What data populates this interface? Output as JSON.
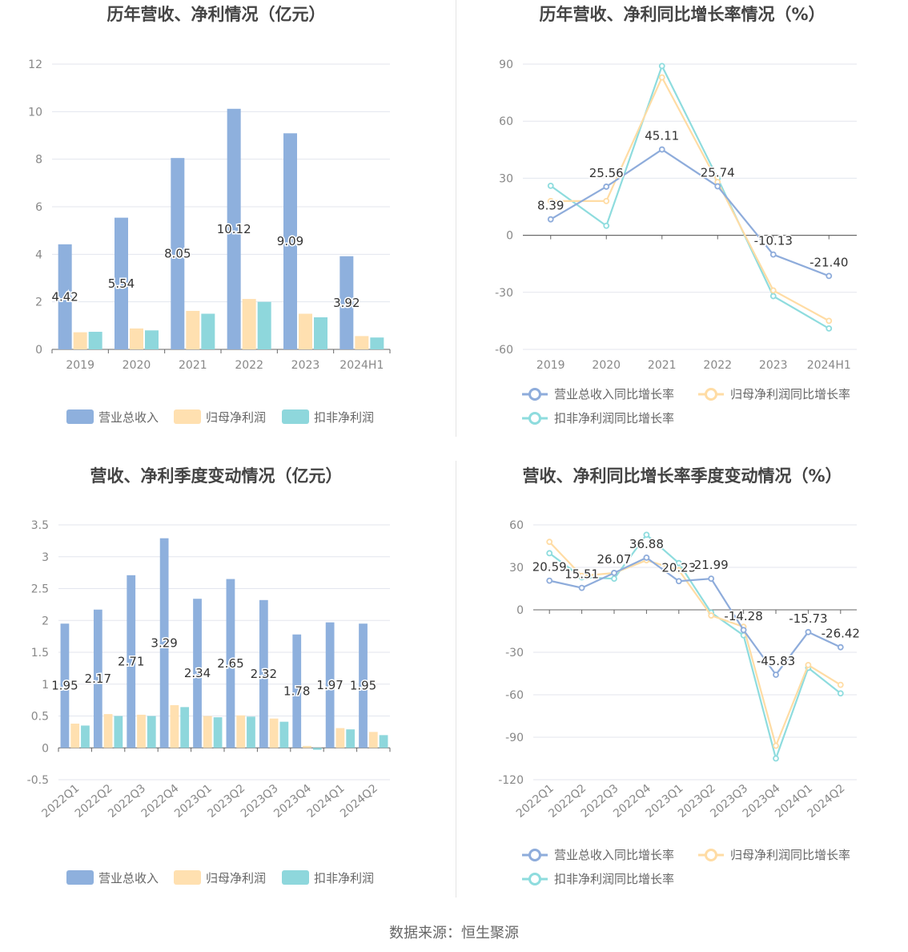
{
  "colors": {
    "revenue": "#8eb0dd",
    "parent_profit": "#ffe0b0",
    "deducted_profit": "#8ed7dc",
    "line_revenue": "#8eacdb",
    "line_parent": "#ffdca4",
    "line_deducted": "#8edcde"
  },
  "source": "数据来源：恒生聚源",
  "chart_data": [
    {
      "id": "annual_bar",
      "type": "bar",
      "title": "历年营收、净利情况（亿元）",
      "categories": [
        "2019",
        "2020",
        "2021",
        "2022",
        "2023",
        "2024H1"
      ],
      "ylim": [
        0,
        12
      ],
      "yticks": [
        "0",
        "2",
        "4",
        "6",
        "8",
        "10",
        "12"
      ],
      "ytick_values": [
        0,
        2,
        4,
        6,
        8,
        10,
        12
      ],
      "series": [
        {
          "name": "营业总收入",
          "values": [
            4.42,
            5.54,
            8.05,
            10.12,
            9.09,
            3.92
          ],
          "labels": [
            "4.42",
            "5.54",
            "8.05",
            "10.12",
            "9.09",
            "3.92"
          ]
        },
        {
          "name": "归母净利润",
          "values": [
            0.72,
            0.88,
            1.62,
            2.12,
            1.5,
            0.56
          ]
        },
        {
          "name": "扣非净利润",
          "values": [
            0.74,
            0.8,
            1.5,
            2.0,
            1.35,
            0.5
          ]
        }
      ],
      "legend": [
        "营业总收入",
        "归母净利润",
        "扣非净利润"
      ],
      "legend_position": "bottom"
    },
    {
      "id": "annual_line",
      "type": "line",
      "title": "历年营收、净利同比增长率情况（%）",
      "categories": [
        "2019",
        "2020",
        "2021",
        "2022",
        "2023",
        "2024H1"
      ],
      "ylim": [
        -60,
        90
      ],
      "yticks": [
        "-60",
        "-30",
        "0",
        "30",
        "60",
        "90"
      ],
      "ytick_values": [
        -60,
        -30,
        0,
        30,
        60,
        90
      ],
      "series": [
        {
          "name": "营业总收入同比增长率",
          "values": [
            8.39,
            25.56,
            45.11,
            25.74,
            -10.13,
            -21.4
          ],
          "labels": [
            "8.39",
            "25.56",
            "45.11",
            "25.74",
            "-10.13",
            "-21.40"
          ]
        },
        {
          "name": "归母净利润同比增长率",
          "values": [
            18,
            18,
            83,
            28,
            -29,
            -45
          ]
        },
        {
          "name": "扣非净利润同比增长率",
          "values": [
            26,
            5,
            89,
            30,
            -32,
            -49
          ]
        }
      ],
      "legend": [
        "营业总收入同比增长率",
        "归母净利润同比增长率",
        "扣非净利润同比增长率"
      ],
      "legend_position": "bottom"
    },
    {
      "id": "quarter_bar",
      "type": "bar",
      "title": "营收、净利季度变动情况（亿元）",
      "categories": [
        "2022Q1",
        "2022Q2",
        "2022Q3",
        "2022Q4",
        "2023Q1",
        "2023Q2",
        "2023Q3",
        "2023Q4",
        "2024Q1",
        "2024Q2"
      ],
      "ylim": [
        -0.5,
        3.5
      ],
      "yticks": [
        "-0.5",
        "0",
        "0.5",
        "1",
        "1.5",
        "2",
        "2.5",
        "3",
        "3.5"
      ],
      "ytick_values": [
        -0.5,
        0,
        0.5,
        1,
        1.5,
        2,
        2.5,
        3,
        3.5
      ],
      "series": [
        {
          "name": "营业总收入",
          "values": [
            1.95,
            2.17,
            2.71,
            3.29,
            2.34,
            2.65,
            2.32,
            1.78,
            1.97,
            1.95
          ],
          "labels": [
            "1.95",
            "2.17",
            "2.71",
            "3.29",
            "2.34",
            "2.65",
            "2.32",
            "1.78",
            "1.97",
            "1.95"
          ]
        },
        {
          "name": "归母净利润",
          "values": [
            0.38,
            0.53,
            0.52,
            0.67,
            0.5,
            0.51,
            0.46,
            0.03,
            0.31,
            0.25
          ]
        },
        {
          "name": "扣非净利润",
          "values": [
            0.35,
            0.5,
            0.5,
            0.64,
            0.48,
            0.49,
            0.41,
            -0.03,
            0.29,
            0.2
          ]
        }
      ],
      "legend": [
        "营业总收入",
        "归母净利润",
        "扣非净利润"
      ],
      "legend_position": "bottom"
    },
    {
      "id": "quarter_line",
      "type": "line",
      "title": "营收、净利同比增长率季度变动情况（%）",
      "categories": [
        "2022Q1",
        "2022Q2",
        "2022Q3",
        "2022Q4",
        "2023Q1",
        "2023Q2",
        "2023Q3",
        "2023Q4",
        "2024Q1",
        "2024Q2"
      ],
      "ylim": [
        -120,
        60
      ],
      "yticks": [
        "-120",
        "-90",
        "-60",
        "-30",
        "0",
        "30",
        "60"
      ],
      "ytick_values": [
        -120,
        -90,
        -60,
        -30,
        0,
        30,
        60
      ],
      "series": [
        {
          "name": "营业总收入同比增长率",
          "values": [
            20.59,
            15.51,
            26.07,
            36.88,
            20.23,
            21.99,
            -14.28,
            -45.83,
            -15.73,
            -26.42
          ],
          "labels": [
            "20.59",
            "15.51",
            "26.07",
            "36.88",
            "20.23",
            "21.99",
            "-14.28",
            "-45.83",
            "-15.73",
            "-26.42"
          ]
        },
        {
          "name": "归母净利润同比增长率",
          "values": [
            48,
            24,
            26,
            35,
            28,
            -4,
            -12,
            -96,
            -39,
            -53
          ]
        },
        {
          "name": "扣非净利润同比增长率",
          "values": [
            40,
            23,
            22,
            53,
            33,
            -2,
            -18,
            -105,
            -41,
            -59
          ]
        }
      ],
      "legend": [
        "营业总收入同比增长率",
        "归母净利润同比增长率",
        "扣非净利润同比增长率"
      ],
      "legend_position": "bottom"
    }
  ]
}
